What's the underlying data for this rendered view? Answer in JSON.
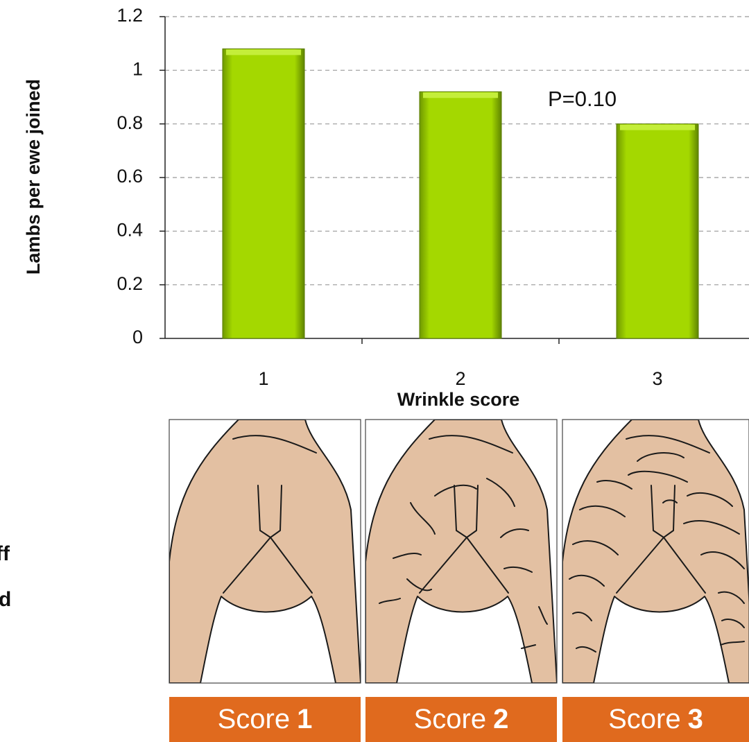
{
  "chart_data": {
    "type": "bar",
    "y_label": "Lambs per ewe joined",
    "x_label": "Wrinkle score",
    "annotation": "P=0.10",
    "categories": [
      "1",
      "2",
      "3"
    ],
    "values": [
      1.08,
      0.92,
      0.8
    ],
    "color": "#a4d800",
    "ylim": [
      0,
      1.2
    ],
    "yticks": [
      0,
      0.2,
      0.4,
      0.6,
      0.8,
      1,
      1.2
    ],
    "grid": true
  },
  "panels": [
    {
      "label": "Score",
      "score": "1"
    },
    {
      "label": "Score",
      "score": "2"
    },
    {
      "label": "Score",
      "score": "3"
    }
  ],
  "side_text": [
    "ff",
    "d"
  ]
}
